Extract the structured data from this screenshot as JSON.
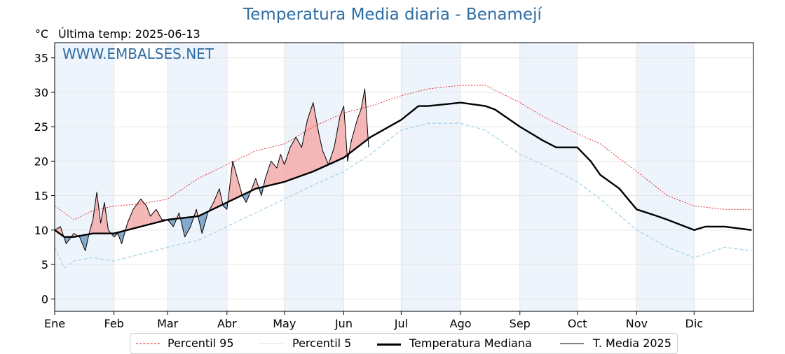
{
  "header": {
    "title": "Temperatura Media diaria - Benamejí",
    "unit": "°C",
    "last_temp": "Última temp: 2025-06-13",
    "watermark": "WWW.EMBALSES.NET"
  },
  "legend": {
    "p95": "Percentil 95",
    "p5": "Percentil 5",
    "median": "Temperatura Mediana",
    "current": "T. Media 2025"
  },
  "colors": {
    "title": "#2e6da4",
    "p95": "#e02020",
    "p5": "#a8d4e6",
    "median": "#000000",
    "current": "#000000",
    "above_fill": "#f4b3b3",
    "below_fill": "#7ea6c8",
    "band": "#eef4fb"
  },
  "chart_data": {
    "type": "line",
    "title": "Temperatura Media diaria - Benamejí",
    "ylabel": "°C",
    "xlim": [
      0,
      365
    ],
    "ylim": [
      -1.8,
      37.2
    ],
    "yticks": [
      0,
      5,
      10,
      15,
      20,
      25,
      30,
      35
    ],
    "grid": true,
    "legend_position": "bottom",
    "month_labels": [
      "Ene",
      "Feb",
      "Mar",
      "Abr",
      "May",
      "Jun",
      "Jul",
      "Ago",
      "Sep",
      "Oct",
      "Nov",
      "Dic"
    ],
    "month_days": [
      0,
      31,
      59,
      90,
      120,
      151,
      181,
      212,
      243,
      273,
      304,
      334
    ],
    "series": [
      {
        "name": "Percentil 95",
        "x": [
          0,
          10,
          20,
          31,
          45,
          59,
          75,
          90,
          105,
          120,
          135,
          151,
          165,
          181,
          195,
          212,
          225,
          243,
          255,
          273,
          285,
          304,
          320,
          334,
          350,
          364
        ],
        "y": [
          13.5,
          11.5,
          12.8,
          13.5,
          13.8,
          14.5,
          17.5,
          19.5,
          21.5,
          22.5,
          25.0,
          27.0,
          28.0,
          29.5,
          30.5,
          31.0,
          31.0,
          28.5,
          26.5,
          24.0,
          22.5,
          18.5,
          15.0,
          13.5,
          13.0,
          13.0
        ]
      },
      {
        "name": "Percentil 5",
        "x": [
          0,
          5,
          10,
          20,
          31,
          45,
          59,
          75,
          90,
          105,
          120,
          135,
          151,
          165,
          181,
          195,
          212,
          225,
          243,
          255,
          273,
          285,
          304,
          320,
          334,
          350,
          364
        ],
        "y": [
          7.5,
          4.5,
          5.5,
          6.0,
          5.5,
          6.5,
          7.5,
          8.5,
          10.5,
          12.5,
          14.5,
          16.5,
          18.5,
          21.0,
          24.5,
          25.5,
          25.5,
          24.5,
          21.0,
          19.5,
          17.0,
          14.5,
          10.0,
          7.5,
          6.0,
          7.5,
          7.0
        ]
      },
      {
        "name": "Temperatura Mediana",
        "x": [
          0,
          5,
          10,
          20,
          31,
          45,
          59,
          75,
          90,
          105,
          120,
          135,
          151,
          165,
          181,
          190,
          195,
          212,
          225,
          230,
          243,
          255,
          262,
          273,
          280,
          285,
          295,
          304,
          315,
          320,
          334,
          340,
          350,
          364
        ],
        "y": [
          10.0,
          9.0,
          9.0,
          9.5,
          9.5,
          10.5,
          11.5,
          12.0,
          14.0,
          16.0,
          17.0,
          18.5,
          20.5,
          23.5,
          26.0,
          28.0,
          28.0,
          28.5,
          28.0,
          27.5,
          25.0,
          23.0,
          22.0,
          22.0,
          20.0,
          18.0,
          16.0,
          13.0,
          12.0,
          11.5,
          10.0,
          10.5,
          10.5,
          10.0
        ]
      },
      {
        "name": "T. Media 2025",
        "x": [
          0,
          3,
          6,
          10,
          13,
          16,
          18,
          20,
          22,
          24,
          26,
          28,
          31,
          33,
          35,
          38,
          41,
          45,
          48,
          50,
          53,
          56,
          59,
          62,
          65,
          68,
          71,
          74,
          77,
          80,
          83,
          86,
          88,
          90,
          93,
          96,
          98,
          100,
          103,
          105,
          108,
          110,
          113,
          116,
          118,
          120,
          123,
          126,
          129,
          132,
          135,
          138,
          140,
          143,
          146,
          149,
          151,
          152,
          153,
          155,
          158,
          160,
          162,
          164
        ],
        "y": [
          10.0,
          10.5,
          8.0,
          9.5,
          9.0,
          7.0,
          9.5,
          11.5,
          15.5,
          11.0,
          14.0,
          10.0,
          9.0,
          9.5,
          8.0,
          11.0,
          13.0,
          14.5,
          13.5,
          12.0,
          13.0,
          11.5,
          11.5,
          10.5,
          12.5,
          9.0,
          10.5,
          13.0,
          9.5,
          12.5,
          14.0,
          16.0,
          13.5,
          13.0,
          20.0,
          17.0,
          15.0,
          14.0,
          16.0,
          17.5,
          15.0,
          17.5,
          20.0,
          19.0,
          21.0,
          19.5,
          22.0,
          23.5,
          22.0,
          26.0,
          28.5,
          24.0,
          21.5,
          19.5,
          22.0,
          26.5,
          28.0,
          24.0,
          20.0,
          23.0,
          26.0,
          27.5,
          30.5,
          22.0
        ]
      }
    ]
  }
}
